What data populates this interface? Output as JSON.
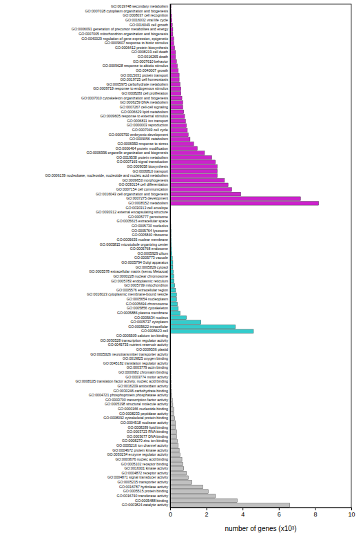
{
  "chart_data": {
    "type": "bar",
    "orientation": "horizontal",
    "xlabel": "number of genes (x10³)",
    "categories": [
      "GO:0019748 secondary metabolism",
      "GO:0007028 cytoplasm organization and biogenesis",
      "GO:0008037 cell recognition",
      "GO:0016032 viral life cycle",
      "GO:0016049 cell growth",
      "GO:0006091 generation of precursor metabolites and energy",
      "GO:0007005 mitochondrion organization and biogenesis",
      "GO:0040029 regulation of gene expression, epigenetic",
      "GO:0009607 response to biotic stimulus",
      "GO:0006412 protein biosynthesis",
      "GO:0008219 cell death",
      "GO:0016265 death",
      "GO:0007610 behavior",
      "GO:0009628 response to abiotic stimulus",
      "GO:0040007 growth",
      "GO:0015031 protein transport",
      "GO:0019725 cell homeostasis",
      "GO:0005975 carbohydrate metabolism",
      "GO:0009719 response to endogenous stimulus",
      "GO:0008283 cell proliferation",
      "GO:0007010 cytoskeleton organization and biogenesis",
      "GO:0006259 DNA metabolism",
      "GO:0007267 cell-cell signaling",
      "GO:0006629 lipid metabolism",
      "GO:0009605 response to external stimulus",
      "GO:0006811 ion transport",
      "GO:0000003 reproduction",
      "GO:0007049 cell cycle",
      "GO:0009790 embryonic development",
      "GO:0009056 catabolism",
      "GO:0006950 response to stress",
      "GO:0006464 protein modification",
      "GO:0006996 organelle organization and biogenesis",
      "GO:0019538 protein metabolism",
      "GO:0007165 signal transduction",
      "GO:0009058 biosynthesis",
      "GO:0006810 transport",
      "GO:0006139 nucleobase, nucleoside, nucleotide and nucleic acid metabolism",
      "GO:0009653 morphogenesis",
      "GO:0030154 cell differentiation",
      "GO:0007154 cell communication",
      "GO:0016043 cell organization and biogenesis",
      "GO:0007275 development",
      "GO:0008152 metabolism",
      "GO:0030313 cell envelope",
      "GO:0030312 external encapsulating structure",
      "GO:0005777 peroxisome",
      "GO:0005615 extracellular space",
      "GO:0005730 nucleolus",
      "GO:0005764 lysosome",
      "GO:0005840 ribosome",
      "GO:0005635 nuclear membrane",
      "GO:0005815 microtubule organizing center",
      "GO:0005768 endosome",
      "GO:0005929 cilium",
      "GO:0005773 vacuole",
      "GO:0005794 Golgi apparatus",
      "GO:0005829 cytosol",
      "GO:0005578 extracellular matrix (sensu Metazoa)",
      "GO:0000228 nuclear chromosome",
      "GO:0005783 endoplasmic reticulum",
      "GO:0005739 mitochondrion",
      "GO:0005576 extracellular region",
      "GO:0016023 cytoplasmic membrane-bound vesicle",
      "GO:0005654 nucleoplasm",
      "GO:0005694 chromosome",
      "GO:0005856 cytoskeleton",
      "GO:0005886 plasma membrane",
      "GO:0005634 nucleus",
      "GO:0005737 cytoplasm",
      "GO:0005622 intracellular",
      "GO:0005623 cell",
      "GO:0005509 calcium ion binding",
      "GO:0030528 transcription regulator activity",
      "GO:0045735 nutrient reservoir activity",
      "GO:0009536 plastid",
      "GO:0005326 neurotransmitter transporter activity",
      "GO:0019825 oxygen binding",
      "GO:0045182 translation regulator activity",
      "GO:0003779 actin binding",
      "GO:0003682 chromatin binding",
      "GO:0003774 motor activity",
      "GO:0008135 translation factor activity, nucleic acid binding",
      "GO:0016209 antioxidant activity",
      "GO:0030246 carbohydrate binding",
      "GO:0004721 phosphoprotein phosphatase activity",
      "GO:0003700 transcription factor activity",
      "GO:0005198 structural molecule activity",
      "GO:0000166 nucleotide binding",
      "GO:0008233 peptidase activity",
      "GO:0008092 cytoskeletal protein binding",
      "GO:0004518 nuclease activity",
      "GO:0008289 lipid binding",
      "GO:0003723 RNA binding",
      "GO:0003677 DNA binding",
      "GO:0008270 zinc ion binding",
      "GO:0005216 ion channel activity",
      "GO:0004672 protein kinase activity",
      "GO:0030234 enzyme regulator activity",
      "GO:0003676 nucleic acid binding",
      "GO:0005102 receptor binding",
      "GO:0016301 kinase activity",
      "GO:0004872 receptor activity",
      "GO:0004871 signal transducer activity",
      "GO:0005215 transporter activity",
      "GO:0016787 hydrolase activity",
      "GO:0005515 protein binding",
      "GO:0016740 transferase activity",
      "GO:0005488 binding",
      "GO:0003824 catalytic activity"
    ],
    "values": [
      0.05,
      0.05,
      0.08,
      0.1,
      0.12,
      0.15,
      0.15,
      0.2,
      0.2,
      0.25,
      0.3,
      0.3,
      0.35,
      0.4,
      0.45,
      0.5,
      0.5,
      0.55,
      0.6,
      0.6,
      0.65,
      0.7,
      0.7,
      0.75,
      0.8,
      0.85,
      0.9,
      0.95,
      1.0,
      1.1,
      1.3,
      1.5,
      1.9,
      2.3,
      2.5,
      2.6,
      2.6,
      2.6,
      3.0,
      3.2,
      3.4,
      3.9,
      7.2,
      8.2,
      0.01,
      0.02,
      0.03,
      0.03,
      0.04,
      0.05,
      0.05,
      0.06,
      0.07,
      0.08,
      0.1,
      0.12,
      0.15,
      0.15,
      0.18,
      0.2,
      0.22,
      0.25,
      0.3,
      0.35,
      0.35,
      0.4,
      0.45,
      0.55,
      0.9,
      1.7,
      3.6,
      4.6,
      0.01,
      0.01,
      0.01,
      0.02,
      0.02,
      0.02,
      0.03,
      0.03,
      0.04,
      0.04,
      0.05,
      0.05,
      0.08,
      0.1,
      0.12,
      0.15,
      0.2,
      0.2,
      0.25,
      0.3,
      0.3,
      0.35,
      0.35,
      0.4,
      0.45,
      0.5,
      0.55,
      0.65,
      0.7,
      0.75,
      0.9,
      1.0,
      1.2,
      1.8,
      2.1,
      2.5,
      3.7,
      6.6
    ],
    "colors": [
      "#cc22cc",
      "#cc22cc",
      "#cc22cc",
      "#cc22cc",
      "#cc22cc",
      "#cc22cc",
      "#cc22cc",
      "#cc22cc",
      "#cc22cc",
      "#cc22cc",
      "#cc22cc",
      "#cc22cc",
      "#cc22cc",
      "#cc22cc",
      "#cc22cc",
      "#cc22cc",
      "#cc22cc",
      "#cc22cc",
      "#cc22cc",
      "#cc22cc",
      "#cc22cc",
      "#cc22cc",
      "#cc22cc",
      "#cc22cc",
      "#cc22cc",
      "#cc22cc",
      "#cc22cc",
      "#cc22cc",
      "#cc22cc",
      "#cc22cc",
      "#cc22cc",
      "#cc22cc",
      "#cc22cc",
      "#cc22cc",
      "#cc22cc",
      "#cc22cc",
      "#cc22cc",
      "#cc22cc",
      "#cc22cc",
      "#cc22cc",
      "#cc22cc",
      "#cc22cc",
      "#cc22cc",
      "#cc22cc",
      "#33cccc",
      "#33cccc",
      "#33cccc",
      "#33cccc",
      "#33cccc",
      "#33cccc",
      "#33cccc",
      "#33cccc",
      "#33cccc",
      "#33cccc",
      "#33cccc",
      "#33cccc",
      "#33cccc",
      "#33cccc",
      "#33cccc",
      "#33cccc",
      "#33cccc",
      "#33cccc",
      "#33cccc",
      "#33cccc",
      "#33cccc",
      "#33cccc",
      "#33cccc",
      "#33cccc",
      "#33cccc",
      "#33cccc",
      "#33cccc",
      "#33cccc",
      "#c0c0c0",
      "#c0c0c0",
      "#c0c0c0",
      "#c0c0c0",
      "#c0c0c0",
      "#c0c0c0",
      "#c0c0c0",
      "#c0c0c0",
      "#c0c0c0",
      "#c0c0c0",
      "#c0c0c0",
      "#c0c0c0",
      "#c0c0c0",
      "#c0c0c0",
      "#c0c0c0",
      "#c0c0c0",
      "#c0c0c0",
      "#c0c0c0",
      "#c0c0c0",
      "#c0c0c0",
      "#c0c0c0",
      "#c0c0c0",
      "#c0c0c0",
      "#c0c0c0",
      "#c0c0c0",
      "#c0c0c0",
      "#c0c0c0",
      "#c0c0c0",
      "#c0c0c0",
      "#c0c0c0",
      "#c0c0c0",
      "#c0c0c0",
      "#c0c0c0",
      "#c0c0c0",
      "#c0c0c0",
      "#c0c0c0",
      "#c0c0c0",
      "#c0c0c0"
    ],
    "xlim": [
      0,
      10
    ],
    "xticks": [
      0,
      2,
      4,
      6,
      8,
      10
    ],
    "grid": false
  }
}
